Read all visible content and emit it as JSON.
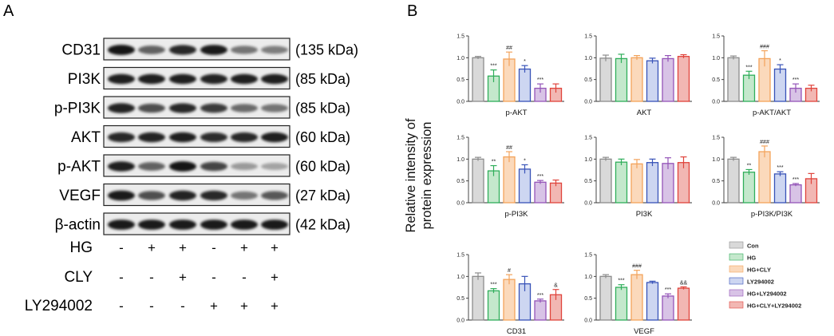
{
  "panel_a": {
    "letter": "A",
    "bands": [
      {
        "label": "CD31",
        "kda": "(135 kDa)",
        "intensity": [
          0.95,
          0.55,
          0.85,
          0.92,
          0.45,
          0.4
        ]
      },
      {
        "label": "PI3K",
        "kda": "(85 kDa)",
        "intensity": [
          0.9,
          0.9,
          0.9,
          0.88,
          0.9,
          0.9
        ]
      },
      {
        "label": "p-PI3K",
        "kda": "(85 kDa)",
        "intensity": [
          0.88,
          0.65,
          0.85,
          0.75,
          0.5,
          0.45
        ]
      },
      {
        "label": "AKT",
        "kda": "(60 kDa)",
        "intensity": [
          0.85,
          0.88,
          0.9,
          0.82,
          0.85,
          0.9
        ]
      },
      {
        "label": "p-AKT",
        "kda": "(60 kDa)",
        "intensity": [
          0.9,
          0.55,
          0.95,
          0.7,
          0.25,
          0.2
        ]
      },
      {
        "label": "VEGF",
        "kda": "(27 kDa)",
        "intensity": [
          0.92,
          0.65,
          0.88,
          0.85,
          0.45,
          0.6
        ]
      },
      {
        "label": "β-actin",
        "kda": "(42 kDa)",
        "intensity": [
          0.92,
          0.92,
          0.92,
          0.92,
          0.92,
          0.92
        ]
      }
    ],
    "treatments": [
      {
        "label": "HG",
        "signs": [
          "-",
          "+",
          "+",
          "-",
          "+",
          "+"
        ]
      },
      {
        "label": "CLY",
        "signs": [
          "-",
          "-",
          "+",
          "-",
          "-",
          "+"
        ]
      },
      {
        "label": "LY294002",
        "signs": [
          "-",
          "-",
          "-",
          "+",
          "+",
          "+"
        ]
      }
    ]
  },
  "chart_data": {
    "letter": "B",
    "type": "bar",
    "ylabel_line1": "Relative intensity of",
    "ylabel_line2": "protein expression",
    "ylim": [
      0,
      1.5
    ],
    "yticks": [
      "0.0",
      "0.5",
      "1.0",
      "1.5"
    ],
    "groups": [
      "Con",
      "HG",
      "HG+CLY",
      "LY294002",
      "HG+LY294002",
      "HG+CLY+LY294002"
    ],
    "colors": [
      "#d9d9d9",
      "#c4e8cc",
      "#fbd9bb",
      "#cdd6f1",
      "#d8c3e6",
      "#f2b7b3"
    ],
    "edge_colors": [
      "#8c8c8c",
      "#2fae5a",
      "#f3a35b",
      "#3853b8",
      "#9454b8",
      "#e0443c"
    ],
    "panels": [
      {
        "title": "p-AKT",
        "values": [
          1.0,
          0.58,
          0.97,
          0.74,
          0.3,
          0.3
        ],
        "errors": [
          0.03,
          0.14,
          0.16,
          0.08,
          0.1,
          0.1
        ],
        "sig": [
          "",
          "***",
          "##",
          "*",
          "***",
          ""
        ]
      },
      {
        "title": "AKT",
        "values": [
          0.99,
          0.98,
          1.0,
          0.93,
          0.98,
          1.03
        ],
        "errors": [
          0.07,
          0.1,
          0.05,
          0.06,
          0.07,
          0.04
        ],
        "sig": [
          "",
          "",
          "",
          "",
          "",
          ""
        ]
      },
      {
        "title": "p-AKT/AKT",
        "values": [
          1.0,
          0.6,
          0.98,
          0.74,
          0.3,
          0.3
        ],
        "errors": [
          0.04,
          0.09,
          0.18,
          0.1,
          0.1,
          0.07
        ],
        "sig": [
          "",
          "***",
          "###",
          "*",
          "***",
          ""
        ]
      },
      {
        "title": "p-PI3K",
        "values": [
          1.0,
          0.73,
          1.05,
          0.77,
          0.47,
          0.45
        ],
        "errors": [
          0.04,
          0.12,
          0.12,
          0.1,
          0.04,
          0.07
        ],
        "sig": [
          "",
          "**",
          "##",
          "*",
          "***",
          ""
        ]
      },
      {
        "title": "PI3K",
        "values": [
          1.0,
          0.93,
          0.89,
          0.92,
          0.9,
          0.92
        ],
        "errors": [
          0.04,
          0.07,
          0.1,
          0.08,
          0.13,
          0.13
        ],
        "sig": [
          "",
          "",
          "",
          "",
          "",
          ""
        ]
      },
      {
        "title": "p-PI3K/PI3K",
        "values": [
          1.0,
          0.7,
          1.17,
          0.66,
          0.41,
          0.55
        ],
        "errors": [
          0.04,
          0.06,
          0.13,
          0.05,
          0.03,
          0.12
        ],
        "sig": [
          "",
          "**",
          "###",
          "***",
          "***",
          ""
        ]
      },
      {
        "title": "CD31",
        "values": [
          1.0,
          0.67,
          0.93,
          0.83,
          0.44,
          0.58
        ],
        "errors": [
          0.08,
          0.05,
          0.11,
          0.17,
          0.04,
          0.12
        ],
        "sig": [
          "",
          "***",
          "#",
          "",
          "***",
          "&"
        ]
      },
      {
        "title": "VEGF",
        "values": [
          1.0,
          0.75,
          1.04,
          0.86,
          0.55,
          0.73
        ],
        "errors": [
          0.04,
          0.06,
          0.1,
          0.03,
          0.05,
          0.03
        ],
        "sig": [
          "",
          "***",
          "###",
          "",
          "***",
          "&&"
        ]
      }
    ],
    "legend": [
      "Con",
      "HG",
      "HG+CLY",
      "LY294002",
      "HG+LY294002",
      "HG+CLY+LY294002"
    ]
  }
}
